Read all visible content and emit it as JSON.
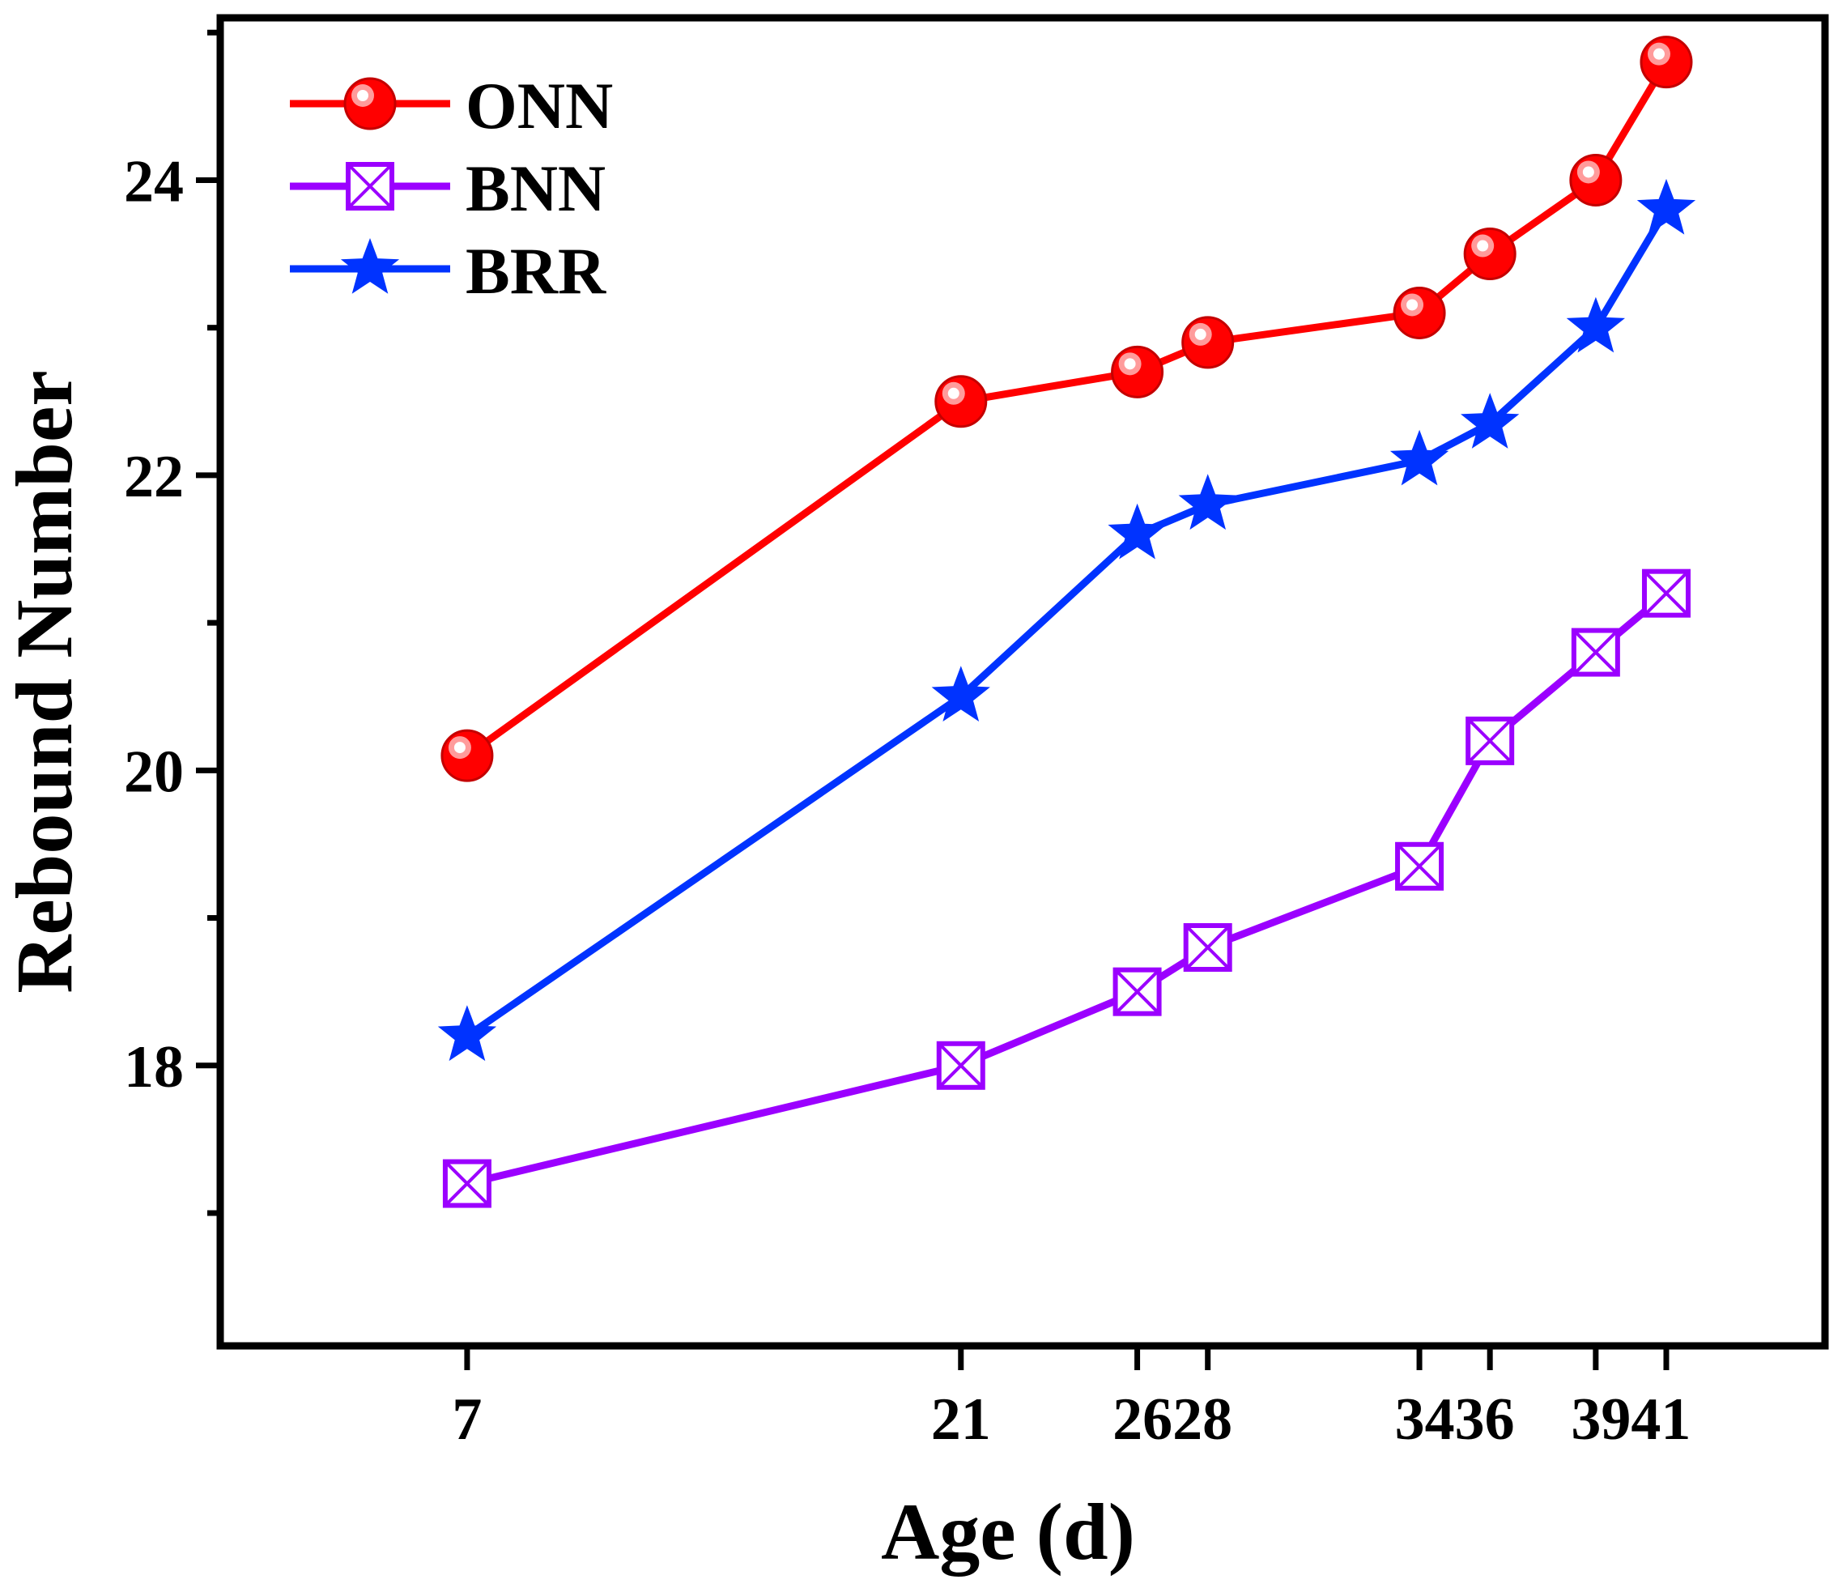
{
  "chart_data": {
    "type": "line",
    "title": "",
    "xlabel": "Age (d)",
    "ylabel": "Rebound Number",
    "x": [
      7,
      21,
      26,
      28,
      34,
      36,
      39,
      41
    ],
    "x_tick_labels": [
      "7",
      "21",
      "2628",
      "3436",
      "3941"
    ],
    "y_ticks": [
      18,
      20,
      22,
      24
    ],
    "xlim": [
      0,
      45.5
    ],
    "ylim": [
      16.1,
      25.1
    ],
    "legend_position": "top-left",
    "series": [
      {
        "name": "ONN",
        "color": "#ff0000",
        "marker": "circle",
        "values": [
          20.1,
          22.5,
          22.7,
          22.9,
          23.1,
          23.5,
          24.0,
          24.8
        ]
      },
      {
        "name": "BNN",
        "color": "#9b00ff",
        "marker": "square-x",
        "values": [
          17.2,
          18.0,
          18.5,
          18.8,
          19.35,
          20.2,
          20.8,
          21.2
        ]
      },
      {
        "name": "BRR",
        "color": "#0033ff",
        "marker": "star",
        "values": [
          18.2,
          20.5,
          21.6,
          21.8,
          22.1,
          22.35,
          23.0,
          23.8
        ]
      }
    ]
  }
}
